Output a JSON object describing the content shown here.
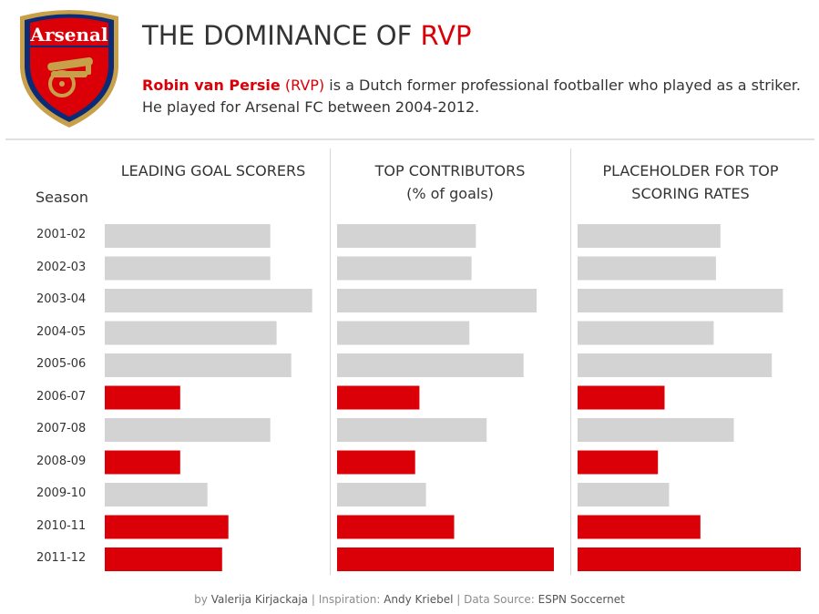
{
  "header": {
    "title_prefix": "THE DOMINANCE OF ",
    "title_accent": "RVP",
    "description_name": "Robin van Persie",
    "description_abbrev": "(RVP)",
    "description_rest": " is a Dutch former professional footballer who played as a striker. He played for Arsenal FC between 2004-2012.",
    "logo_text": "Arsenal"
  },
  "colors": {
    "highlight": "#db0007",
    "base": "#d3d3d3",
    "text": "#333333"
  },
  "chart_data": {
    "type": "bar",
    "orientation": "horizontal",
    "row_header": "Season",
    "categories": [
      "2001-02",
      "2002-03",
      "2003-04",
      "2004-05",
      "2005-06",
      "2006-07",
      "2007-08",
      "2008-09",
      "2009-10",
      "2010-11",
      "2011-12"
    ],
    "highlighted": [
      false,
      false,
      false,
      false,
      false,
      true,
      false,
      true,
      false,
      true,
      true
    ],
    "panels": [
      {
        "title": "LEADING GOAL SCORERS",
        "values": [
          0.79,
          0.79,
          0.99,
          0.82,
          0.89,
          0.36,
          0.79,
          0.36,
          0.49,
          0.59,
          0.56
        ],
        "xlim": [
          0,
          1
        ]
      },
      {
        "title": "TOP CONTRIBUTORS\n(% of goals)",
        "values": [
          0.64,
          0.62,
          0.92,
          0.61,
          0.86,
          0.38,
          0.69,
          0.36,
          0.41,
          0.54,
          1.0
        ],
        "xlim": [
          0,
          1
        ]
      },
      {
        "title": "PLACEHOLDER FOR TOP\nSCORING RATES",
        "values": [
          0.64,
          0.62,
          0.92,
          0.61,
          0.87,
          0.39,
          0.7,
          0.36,
          0.41,
          0.55,
          1.0
        ],
        "xlim": [
          0,
          1
        ]
      }
    ]
  },
  "footer": {
    "by_prefix": "by ",
    "author": "Valerija Kirjackaja",
    "sep1": " | Inspiration: ",
    "inspiration": "Andy Kriebel",
    "sep2": " | Data Source: ",
    "source": "ESPN Soccernet"
  }
}
